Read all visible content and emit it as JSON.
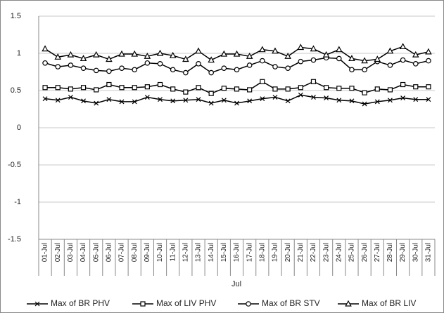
{
  "chart_data": {
    "type": "line",
    "x_label": "Jul",
    "categories": [
      "01-Jul",
      "02-Jul",
      "03-Jul",
      "04-Jul",
      "05-Jul",
      "06-Jul",
      "07-Jul",
      "08-Jul",
      "09-Jul",
      "10-Jul",
      "11-Jul",
      "12-Jul",
      "13-Jul",
      "14-Jul",
      "15-Jul",
      "16-Jul",
      "17-Jul",
      "18-Jul",
      "19-Jul",
      "20-Jul",
      "21-Jul",
      "22-Jul",
      "23-Jul",
      "24-Jul",
      "25-Jul",
      "26-Jul",
      "27-Jul",
      "28-Jul",
      "29-Jul",
      "30-Jul",
      "31-Jul"
    ],
    "ylim": [
      -1.5,
      1.5
    ],
    "yticks": [
      1.5,
      1,
      0.5,
      0,
      -0.5,
      -1,
      -1.5
    ],
    "grid": true,
    "legend": "bottom",
    "series": [
      {
        "name": "Max of BR PHV",
        "color": "#000000",
        "marker": "x",
        "values": [
          0.39,
          0.37,
          0.41,
          0.36,
          0.33,
          0.38,
          0.35,
          0.35,
          0.41,
          0.38,
          0.36,
          0.37,
          0.38,
          0.33,
          0.37,
          0.33,
          0.36,
          0.39,
          0.41,
          0.36,
          0.44,
          0.41,
          0.4,
          0.37,
          0.36,
          0.32,
          0.35,
          0.37,
          0.4,
          0.38,
          0.38
        ]
      },
      {
        "name": "Max of LIV PHV",
        "color": "#000000",
        "marker": "square",
        "values": [
          0.54,
          0.54,
          0.52,
          0.54,
          0.51,
          0.58,
          0.54,
          0.54,
          0.55,
          0.58,
          0.52,
          0.48,
          0.54,
          0.46,
          0.53,
          0.52,
          0.51,
          0.62,
          0.52,
          0.52,
          0.54,
          0.62,
          0.54,
          0.53,
          0.53,
          0.47,
          0.52,
          0.51,
          0.58,
          0.55,
          0.55
        ]
      },
      {
        "name": "Max of BR STV",
        "color": "#000000",
        "marker": "circle",
        "values": [
          0.87,
          0.82,
          0.84,
          0.8,
          0.77,
          0.76,
          0.8,
          0.78,
          0.87,
          0.86,
          0.78,
          0.74,
          0.86,
          0.74,
          0.8,
          0.78,
          0.84,
          0.9,
          0.82,
          0.8,
          0.89,
          0.91,
          0.94,
          0.93,
          0.78,
          0.78,
          0.89,
          0.84,
          0.91,
          0.86,
          0.9
        ]
      },
      {
        "name": "Max of BR LIV",
        "color": "#000000",
        "marker": "triangle",
        "values": [
          1.06,
          0.95,
          0.98,
          0.93,
          0.98,
          0.92,
          0.99,
          0.99,
          0.96,
          1.0,
          0.97,
          0.92,
          1.03,
          0.91,
          0.99,
          0.99,
          0.96,
          1.05,
          1.03,
          0.96,
          1.08,
          1.06,
          0.98,
          1.05,
          0.93,
          0.9,
          0.92,
          1.03,
          1.09,
          0.98,
          1.02
        ]
      }
    ]
  }
}
